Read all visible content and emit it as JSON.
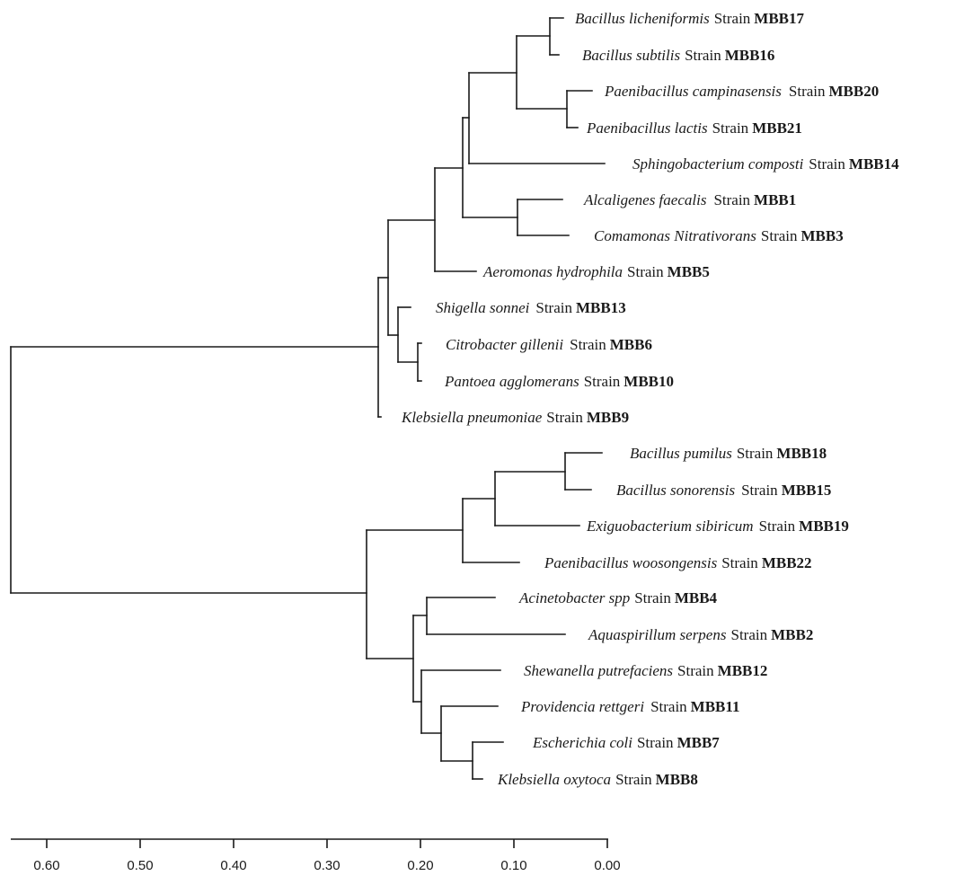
{
  "tree": {
    "leaves": [
      {
        "taxon": "Bacillus licheniformis",
        "strain_word": "Strain",
        "strain_id": "MBB17"
      },
      {
        "taxon": "Bacillus subtilis",
        "strain_word": "Strain",
        "strain_id": "MBB16"
      },
      {
        "taxon": "Paenibacillus campinasensis",
        "strain_word": "Strain",
        "strain_id": "MBB20"
      },
      {
        "taxon": "Paenibacillus lactis",
        "strain_word": "Strain",
        "strain_id": "MBB21"
      },
      {
        "taxon": "Sphingobacterium composti",
        "strain_word": "Strain",
        "strain_id": "MBB14"
      },
      {
        "taxon": "Alcaligenes faecalis",
        "strain_word": "Strain",
        "strain_id": "MBB1"
      },
      {
        "taxon": "Comamonas Nitrativorans",
        "strain_word": "Strain",
        "strain_id": "MBB3"
      },
      {
        "taxon": "Aeromonas hydrophila",
        "strain_word": "Strain",
        "strain_id": "MBB5"
      },
      {
        "taxon": "Shigella sonnei",
        "strain_word": "Strain",
        "strain_id": "MBB13"
      },
      {
        "taxon": "Citrobacter gillenii",
        "strain_word": "Strain",
        "strain_id": "MBB6"
      },
      {
        "taxon": "Pantoea agglomerans",
        "strain_word": "Strain",
        "strain_id": "MBB10"
      },
      {
        "taxon": "Klebsiella pneumoniae",
        "strain_word": "Strain",
        "strain_id": "MBB9"
      },
      {
        "taxon": "Bacillus pumilus",
        "strain_word": "Strain",
        "strain_id": "MBB18"
      },
      {
        "taxon": "Bacillus sonorensis",
        "strain_word": "Strain",
        "strain_id": "MBB15"
      },
      {
        "taxon": "Exiguobacterium sibiricum",
        "strain_word": "Strain",
        "strain_id": "MBB19"
      },
      {
        "taxon": "Paenibacillus woosongensis",
        "strain_word": "Strain",
        "strain_id": "MBB22"
      },
      {
        "taxon": "Acinetobacter spp",
        "strain_word": "Strain",
        "strain_id": "MBB4"
      },
      {
        "taxon": "Aquaspirillum serpens",
        "strain_word": "Strain",
        "strain_id": "MBB2"
      },
      {
        "taxon": "Shewanella putrefaciens",
        "strain_word": "Strain",
        "strain_id": "MBB12"
      },
      {
        "taxon": "Providencia rettgeri",
        "strain_word": "Strain",
        "strain_id": "MBB11"
      },
      {
        "taxon": "Escherichia coli",
        "strain_word": "Strain",
        "strain_id": "MBB7"
      },
      {
        "taxon": "Klebsiella oxytoca",
        "strain_word": "Strain",
        "strain_id": "MBB8"
      }
    ]
  },
  "axis": {
    "ticks": [
      "0.60",
      "0.50",
      "0.40",
      "0.30",
      "0.20",
      "0.10",
      "0.00"
    ]
  }
}
